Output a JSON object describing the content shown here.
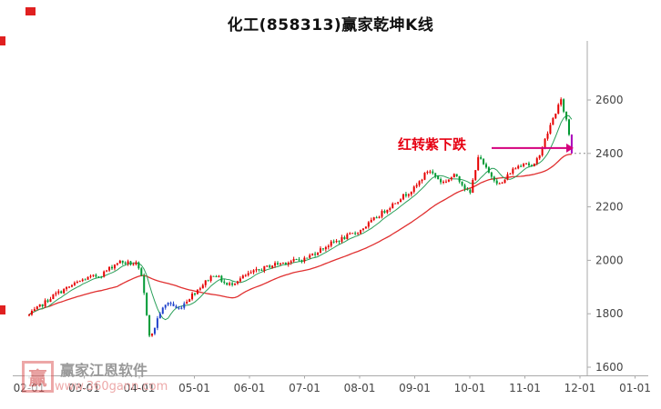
{
  "title": "化工(858313)赢家乾坤K线",
  "annotation": {
    "text": "红转紫下跌",
    "text_color": "#e60012",
    "arrow_color": "#d4007d",
    "price_level": 2420,
    "arrow_from_x": 540,
    "arrow_to_x": 630
  },
  "watermark": {
    "logo_text": "赢",
    "name": "赢家江恩软件",
    "url": "www.360gann.com"
  },
  "chart_data": {
    "type": "candlestick",
    "title": "化工(858313)赢家乾坤K线",
    "x_ticks": [
      "02-01",
      "03-01",
      "04-01",
      "05-01",
      "06-01",
      "07-01",
      "08-01",
      "09-01",
      "10-01",
      "11-01",
      "12-01",
      "01-01"
    ],
    "y_ticks": [
      1600,
      1800,
      2000,
      2200,
      2400,
      2600
    ],
    "ylim": [
      1600,
      2820
    ],
    "grid": false,
    "legend": "none",
    "anchors": [
      {
        "t": 0.0,
        "v": 1795
      },
      {
        "t": 0.45,
        "v": 1870
      },
      {
        "t": 1.0,
        "v": 1930
      },
      {
        "t": 1.3,
        "v": 1945
      },
      {
        "t": 1.62,
        "v": 1995
      },
      {
        "t": 1.95,
        "v": 1985
      },
      {
        "t": 2.05,
        "v": 1930
      },
      {
        "t": 2.2,
        "v": 1700
      },
      {
        "t": 2.36,
        "v": 1800
      },
      {
        "t": 2.53,
        "v": 1845
      },
      {
        "t": 2.7,
        "v": 1815
      },
      {
        "t": 3.0,
        "v": 1880
      },
      {
        "t": 3.36,
        "v": 1950
      },
      {
        "t": 3.6,
        "v": 1905
      },
      {
        "t": 4.0,
        "v": 1950
      },
      {
        "t": 4.45,
        "v": 1985
      },
      {
        "t": 5.0,
        "v": 2005
      },
      {
        "t": 5.45,
        "v": 2060
      },
      {
        "t": 6.0,
        "v": 2110
      },
      {
        "t": 6.45,
        "v": 2185
      },
      {
        "t": 6.75,
        "v": 2235
      },
      {
        "t": 7.0,
        "v": 2270
      },
      {
        "t": 7.25,
        "v": 2340
      },
      {
        "t": 7.5,
        "v": 2290
      },
      {
        "t": 7.75,
        "v": 2320
      },
      {
        "t": 8.0,
        "v": 2245
      },
      {
        "t": 8.15,
        "v": 2390
      },
      {
        "t": 8.33,
        "v": 2330
      },
      {
        "t": 8.56,
        "v": 2280
      },
      {
        "t": 8.75,
        "v": 2335
      },
      {
        "t": 9.0,
        "v": 2370
      },
      {
        "t": 9.15,
        "v": 2345
      },
      {
        "t": 9.32,
        "v": 2425
      },
      {
        "t": 9.5,
        "v": 2525
      },
      {
        "t": 9.65,
        "v": 2600
      },
      {
        "t": 9.76,
        "v": 2520
      },
      {
        "t": 9.85,
        "v": 2415
      }
    ],
    "candle_count": 204,
    "t_end": 9.85,
    "last_close": 2400,
    "colors": {
      "up": "#e60000",
      "down": "#009933",
      "blue": "#2244cc",
      "purple": "#aa00bb",
      "ma_fast": "#2aa05a",
      "ma_slow": "#e03030",
      "axis": "#aaaaaa",
      "label": "#444444",
      "last_price_line": "#888888"
    },
    "color_zones": [
      {
        "from": 2.25,
        "to": 2.82,
        "color": "blue"
      }
    ],
    "last_candle_color": "purple",
    "ma_fast_period": 8,
    "ma_slow_period": 34
  }
}
